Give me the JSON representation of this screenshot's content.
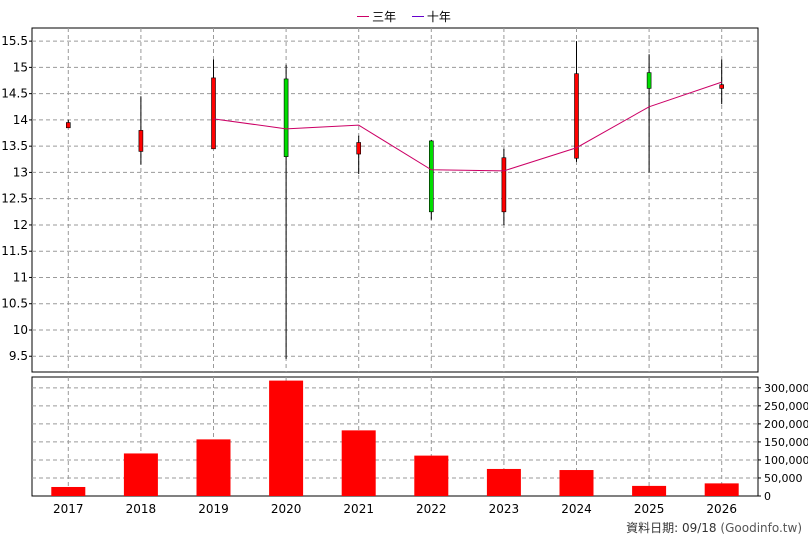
{
  "colors": {
    "up": "#ff0000",
    "down": "#00dd00",
    "line_3y": "#cc0066",
    "line_10y": "#6600cc",
    "volume": "#ff0000",
    "grid": "#9a9a9a"
  },
  "legend": [
    {
      "name": "三年",
      "color": "#cc0066"
    },
    {
      "name": "十年",
      "color": "#6600cc"
    }
  ],
  "credit": {
    "label": "資料日期: 09/18",
    "source": "(Goodinfo.tw)"
  },
  "chart_data": [
    {
      "type": "candlestick",
      "categories": [
        "2017",
        "2018",
        "2019",
        "2020",
        "2021",
        "2022",
        "2023",
        "2024",
        "2025",
        "2026"
      ],
      "ylim": [
        9.2,
        15.75
      ],
      "yticks": [
        9.5,
        10,
        10.5,
        11,
        11.5,
        12,
        12.5,
        13,
        13.5,
        14,
        14.5,
        15,
        15.5
      ],
      "candles": [
        {
          "x": "2017",
          "open": 13.85,
          "close": 13.95,
          "high": 14.0,
          "low": 13.85
        },
        {
          "x": "2018",
          "open": 13.4,
          "close": 13.8,
          "high": 14.45,
          "low": 13.15
        },
        {
          "x": "2019",
          "open": 13.45,
          "close": 14.8,
          "high": 15.15,
          "low": 13.45
        },
        {
          "x": "2020",
          "open": 14.78,
          "close": 13.3,
          "high": 15.05,
          "low": 9.45
        },
        {
          "x": "2021",
          "open": 13.35,
          "close": 13.57,
          "high": 13.7,
          "low": 12.97
        },
        {
          "x": "2022",
          "open": 13.6,
          "close": 12.25,
          "high": 13.62,
          "low": 12.1
        },
        {
          "x": "2023",
          "open": 12.25,
          "close": 13.28,
          "high": 13.45,
          "low": 12.0
        },
        {
          "x": "2024",
          "open": 13.27,
          "close": 14.88,
          "high": 15.5,
          "low": 13.2
        },
        {
          "x": "2025",
          "open": 14.9,
          "close": 14.6,
          "high": 15.25,
          "low": 13.0
        },
        {
          "x": "2026",
          "open": 14.6,
          "close": 14.67,
          "high": 15.15,
          "low": 14.3
        }
      ],
      "series": [
        {
          "name": "三年",
          "x": [
            "2019",
            "2020",
            "2021",
            "2022",
            "2023",
            "2024",
            "2025",
            "2026"
          ],
          "values": [
            14.02,
            13.83,
            13.9,
            13.05,
            13.03,
            13.47,
            14.25,
            14.72
          ]
        }
      ],
      "grid": true
    },
    {
      "type": "bar",
      "categories": [
        "2017",
        "2018",
        "2019",
        "2020",
        "2021",
        "2022",
        "2023",
        "2024",
        "2025",
        "2026"
      ],
      "values": [
        25000,
        118000,
        157000,
        320000,
        182000,
        112000,
        75000,
        72000,
        28000,
        35000
      ],
      "ylim": [
        0,
        330000
      ],
      "yticks": [
        0,
        50000,
        100000,
        150000,
        200000,
        250000,
        300000
      ],
      "ytick_labels": [
        "0",
        "50,000",
        "100,000",
        "150,000",
        "200,000",
        "250,000",
        "300,000"
      ],
      "grid": true
    }
  ]
}
